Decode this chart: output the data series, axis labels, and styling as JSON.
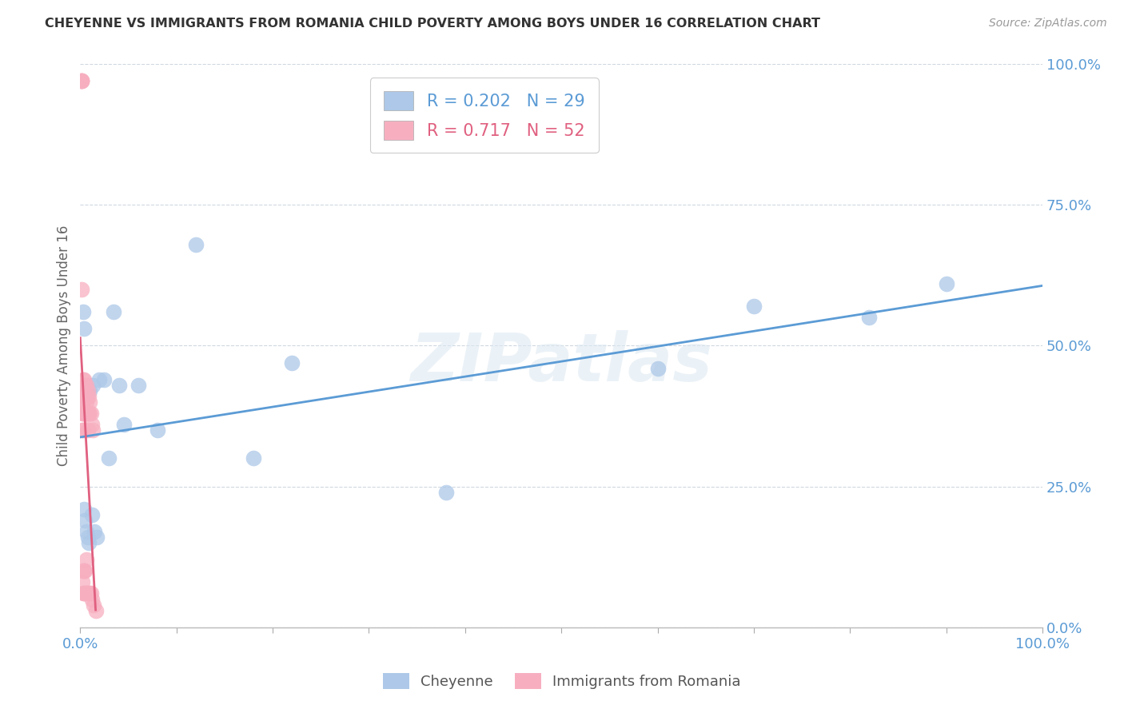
{
  "title": "CHEYENNE VS IMMIGRANTS FROM ROMANIA CHILD POVERTY AMONG BOYS UNDER 16 CORRELATION CHART",
  "source": "Source: ZipAtlas.com",
  "ylabel": "Child Poverty Among Boys Under 16",
  "cheyenne_R": 0.202,
  "cheyenne_N": 29,
  "romania_R": 0.717,
  "romania_N": 52,
  "cheyenne_color": "#adc8e8",
  "cheyenne_line_color": "#5b9bd5",
  "romania_color": "#f7afc0",
  "romania_line_color": "#e06080",
  "background_color": "#ffffff",
  "grid_color": "#d0d8e0",
  "watermark": "ZIPatlas",
  "cheyenne_x": [
    0.003,
    0.004,
    0.004,
    0.005,
    0.006,
    0.007,
    0.008,
    0.009,
    0.01,
    0.012,
    0.013,
    0.015,
    0.017,
    0.02,
    0.025,
    0.03,
    0.035,
    0.04,
    0.045,
    0.06,
    0.08,
    0.12,
    0.18,
    0.22,
    0.38,
    0.6,
    0.7,
    0.82,
    0.9
  ],
  "cheyenne_y": [
    0.56,
    0.53,
    0.21,
    0.19,
    0.17,
    0.42,
    0.16,
    0.15,
    0.42,
    0.2,
    0.43,
    0.17,
    0.16,
    0.44,
    0.44,
    0.3,
    0.56,
    0.43,
    0.36,
    0.43,
    0.35,
    0.68,
    0.3,
    0.47,
    0.24,
    0.46,
    0.57,
    0.55,
    0.61
  ],
  "romania_x": [
    0.001,
    0.001,
    0.001,
    0.001,
    0.001,
    0.002,
    0.002,
    0.002,
    0.002,
    0.002,
    0.002,
    0.003,
    0.003,
    0.003,
    0.003,
    0.003,
    0.003,
    0.003,
    0.004,
    0.004,
    0.004,
    0.004,
    0.004,
    0.005,
    0.005,
    0.005,
    0.005,
    0.005,
    0.006,
    0.006,
    0.006,
    0.006,
    0.007,
    0.007,
    0.007,
    0.008,
    0.008,
    0.008,
    0.008,
    0.009,
    0.009,
    0.009,
    0.01,
    0.01,
    0.01,
    0.011,
    0.011,
    0.012,
    0.012,
    0.013,
    0.014,
    0.016
  ],
  "romania_y": [
    0.97,
    0.97,
    0.97,
    0.97,
    0.6,
    0.42,
    0.41,
    0.4,
    0.38,
    0.35,
    0.08,
    0.44,
    0.42,
    0.4,
    0.38,
    0.35,
    0.1,
    0.06,
    0.44,
    0.42,
    0.38,
    0.1,
    0.06,
    0.43,
    0.41,
    0.38,
    0.1,
    0.06,
    0.43,
    0.4,
    0.12,
    0.06,
    0.41,
    0.38,
    0.06,
    0.42,
    0.38,
    0.35,
    0.06,
    0.41,
    0.38,
    0.06,
    0.4,
    0.38,
    0.06,
    0.38,
    0.06,
    0.36,
    0.05,
    0.35,
    0.04,
    0.03
  ],
  "ylim": [
    0,
    1.0
  ],
  "xlim": [
    0,
    1.0
  ],
  "yticks": [
    0.0,
    0.25,
    0.5,
    0.75,
    1.0
  ],
  "ytick_labels": [
    "0.0%",
    "25.0%",
    "50.0%",
    "75.0%",
    "100.0%"
  ],
  "xtick_positions": [
    0.0,
    0.1,
    0.2,
    0.3,
    0.4,
    0.5,
    0.6,
    0.7,
    0.8,
    0.9,
    1.0
  ],
  "xtick_labels_show": {
    "0.0": "0.0%",
    "1.0": "100.0%"
  }
}
